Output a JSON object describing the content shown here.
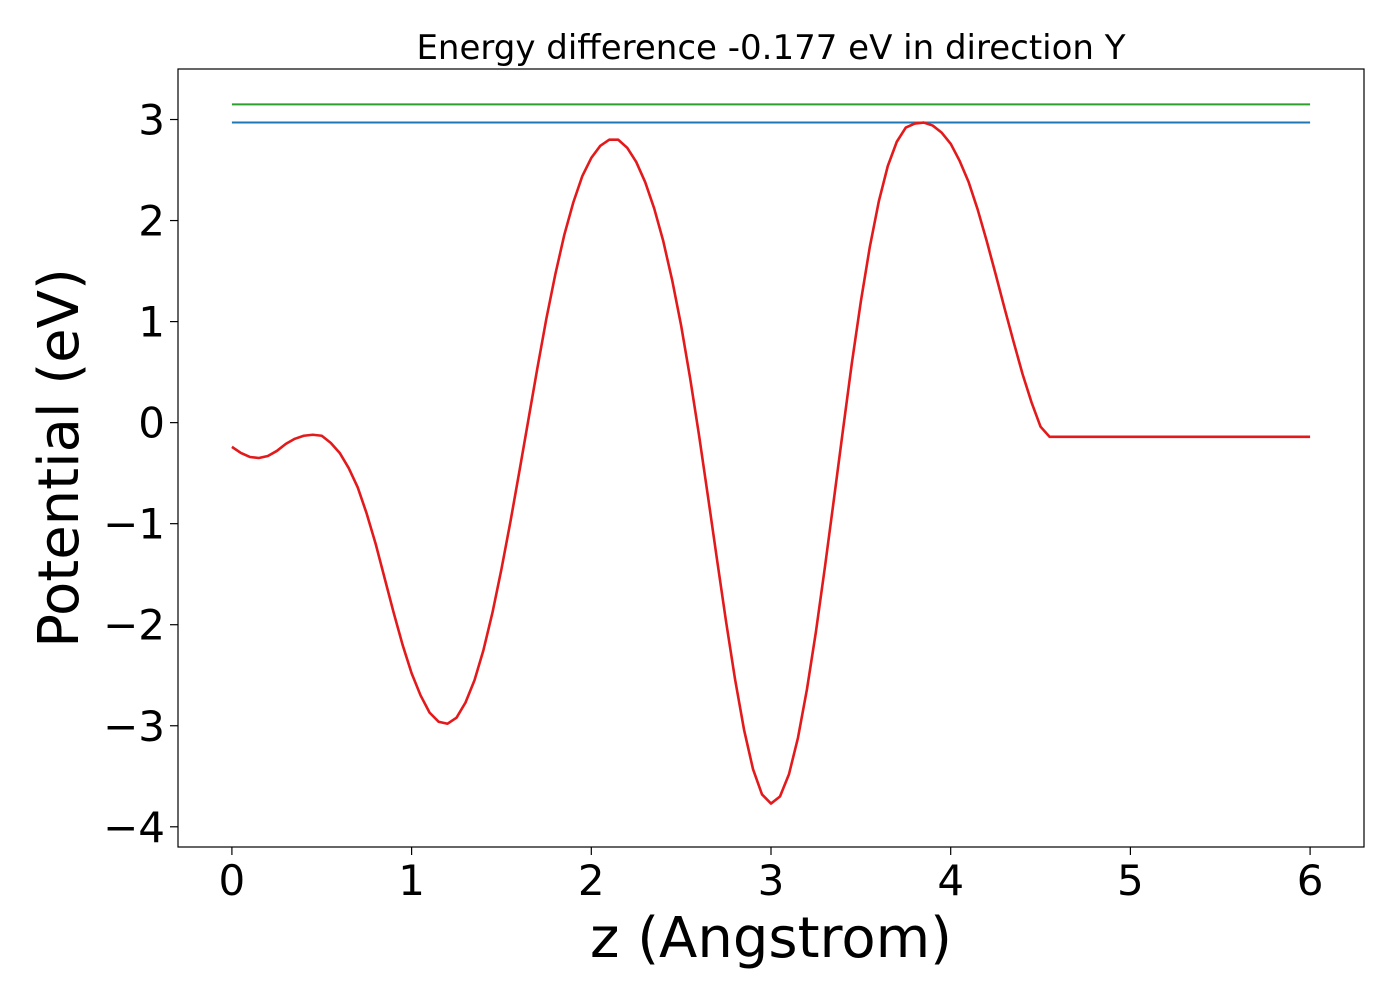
{
  "chart_data": {
    "type": "line",
    "title": "Energy difference -0.177 eV in direction Y",
    "xlabel": "z (Angstrom)",
    "ylabel": "Potential (eV)",
    "xlim": [
      -0.3,
      6.3
    ],
    "ylim": [
      -4.2,
      3.5
    ],
    "xticks": [
      0,
      1,
      2,
      3,
      4,
      5,
      6
    ],
    "xtick_labels": [
      "0",
      "1",
      "2",
      "3",
      "4",
      "5",
      "6"
    ],
    "yticks": [
      -4,
      -3,
      -2,
      -1,
      0,
      1,
      2,
      3
    ],
    "ytick_labels": [
      "−4",
      "−3",
      "−2",
      "−1",
      "0",
      "1",
      "2",
      "3"
    ],
    "grid": false,
    "series": [
      {
        "color": "#2ca02c",
        "x": [
          0,
          6
        ],
        "y": [
          3.15,
          3.15
        ]
      },
      {
        "color": "#1f77b4",
        "x": [
          0,
          6
        ],
        "y": [
          2.97,
          2.97
        ]
      },
      {
        "color": "#e31a1c",
        "x": [
          0.0,
          0.05,
          0.1,
          0.15,
          0.2,
          0.25,
          0.3,
          0.35,
          0.4,
          0.45,
          0.5,
          0.55,
          0.6,
          0.65,
          0.7,
          0.75,
          0.8,
          0.85,
          0.9,
          0.95,
          1.0,
          1.05,
          1.1,
          1.15,
          1.2,
          1.25,
          1.3,
          1.35,
          1.4,
          1.45,
          1.5,
          1.55,
          1.6,
          1.65,
          1.7,
          1.75,
          1.8,
          1.85,
          1.9,
          1.95,
          2.0,
          2.05,
          2.1,
          2.15,
          2.2,
          2.25,
          2.3,
          2.35,
          2.4,
          2.45,
          2.5,
          2.55,
          2.6,
          2.65,
          2.7,
          2.75,
          2.8,
          2.85,
          2.9,
          2.95,
          3.0,
          3.05,
          3.1,
          3.15,
          3.2,
          3.25,
          3.3,
          3.35,
          3.4,
          3.45,
          3.5,
          3.55,
          3.6,
          3.65,
          3.7,
          3.75,
          3.8,
          3.85,
          3.9,
          3.95,
          4.0,
          4.05,
          4.1,
          4.15,
          4.2,
          4.25,
          4.3,
          4.35,
          4.4,
          4.45,
          4.5,
          4.55,
          4.6,
          4.65,
          4.7,
          4.75,
          4.8,
          4.85,
          4.9,
          4.95,
          5.0,
          5.05,
          5.1,
          5.15,
          5.2,
          5.25,
          5.3,
          5.35,
          5.4,
          5.45,
          5.5,
          5.55,
          5.6,
          5.65,
          5.7,
          5.75,
          5.8,
          5.85,
          5.9,
          5.95,
          6.0
        ],
        "y": [
          -0.24,
          -0.3,
          -0.34,
          -0.35,
          -0.33,
          -0.28,
          -0.21,
          -0.16,
          -0.13,
          -0.12,
          -0.13,
          -0.2,
          -0.3,
          -0.45,
          -0.64,
          -0.9,
          -1.2,
          -1.54,
          -1.88,
          -2.2,
          -2.48,
          -2.7,
          -2.87,
          -2.96,
          -2.98,
          -2.92,
          -2.77,
          -2.55,
          -2.25,
          -1.88,
          -1.45,
          -0.98,
          -0.48,
          0.03,
          0.54,
          1.03,
          1.47,
          1.86,
          2.18,
          2.44,
          2.62,
          2.74,
          2.8,
          2.8,
          2.72,
          2.58,
          2.38,
          2.12,
          1.8,
          1.41,
          0.96,
          0.44,
          -0.13,
          -0.74,
          -1.36,
          -1.97,
          -2.54,
          -3.04,
          -3.43,
          -3.68,
          -3.77,
          -3.7,
          -3.48,
          -3.12,
          -2.64,
          -2.07,
          -1.43,
          -0.76,
          -0.08,
          0.59,
          1.2,
          1.74,
          2.19,
          2.54,
          2.78,
          2.92,
          2.96,
          2.97,
          2.94,
          2.87,
          2.76,
          2.59,
          2.38,
          2.11,
          1.8,
          1.47,
          1.13,
          0.8,
          0.48,
          0.2,
          -0.04,
          -0.14,
          -0.14,
          -0.14,
          -0.14,
          -0.14,
          -0.14,
          -0.14,
          -0.14,
          -0.14,
          -0.14,
          -0.14,
          -0.14,
          -0.14,
          -0.14,
          -0.14,
          -0.14,
          -0.14,
          -0.14,
          -0.14,
          -0.14,
          -0.14,
          -0.14,
          -0.14,
          -0.14,
          -0.14,
          -0.14,
          -0.14,
          -0.14,
          -0.14,
          -0.14
        ]
      }
    ]
  }
}
